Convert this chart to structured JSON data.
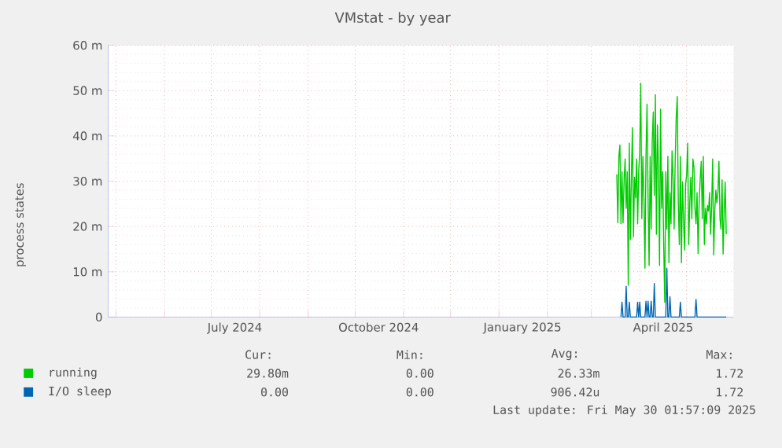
{
  "chart_data": {
    "type": "line",
    "title": "VMstat - by year",
    "ylabel": "process states",
    "xlim": [
      "2024-04-26",
      "2025-05-31"
    ],
    "xticks": [
      {
        "value": "2024-05-01",
        "label": null
      },
      {
        "value": "2024-06-01",
        "label": null
      },
      {
        "value": "2024-07-01",
        "label": null
      },
      {
        "value": "2024-08-01",
        "label": null
      },
      {
        "value": "2024-09-01",
        "label": null
      },
      {
        "value": "2024-10-01",
        "label": null
      },
      {
        "value": "2024-11-01",
        "label": null
      },
      {
        "value": "2024-12-01",
        "label": null
      },
      {
        "value": "2025-01-01",
        "label": null
      },
      {
        "value": "2025-02-01",
        "label": null
      },
      {
        "value": "2025-03-01",
        "label": null
      },
      {
        "value": "2025-04-01",
        "label": null
      },
      {
        "value": "2025-05-01",
        "label": null
      },
      {
        "value": "2024-07-16",
        "label": "July 2024"
      },
      {
        "value": "2024-10-16",
        "label": "October 2024"
      },
      {
        "value": "2025-01-16",
        "label": "January 2025"
      },
      {
        "value": "2025-04-16",
        "label": "April 2025"
      }
    ],
    "ylim": [
      0,
      60
    ],
    "yticks": [
      0,
      {
        "value": 10,
        "label": "10 m"
      },
      {
        "value": 20,
        "label": "20 m"
      },
      {
        "value": 30,
        "label": "30 m"
      },
      {
        "value": 40,
        "label": "40 m"
      },
      {
        "value": 50,
        "label": "50 m"
      },
      {
        "value": 60,
        "label": "60 m"
      }
    ],
    "grid": true,
    "legend": "bottom",
    "marker": "none",
    "x": [
      "2025-03-17T08:00",
      "2025-03-18T00:00",
      "2025-03-18T16:00",
      "2025-03-19T08:00",
      "2025-03-20T00:00",
      "2025-03-20T16:00",
      "2025-03-21T08:00",
      "2025-03-22T00:00",
      "2025-03-22T16:00",
      "2025-03-23T08:00",
      "2025-03-24T00:00",
      "2025-03-24T16:00",
      "2025-03-25T08:00",
      "2025-03-26T00:00",
      "2025-03-26T16:00",
      "2025-03-27T08:00",
      "2025-03-28T00:00",
      "2025-03-28T16:00",
      "2025-03-29T08:00",
      "2025-03-30T00:00",
      "2025-03-30T16:00",
      "2025-03-31T08:00",
      "2025-04-01T00:00",
      "2025-04-01T16:00",
      "2025-04-02T08:00",
      "2025-04-03T00:00",
      "2025-04-03T16:00",
      "2025-04-04T08:00",
      "2025-04-05T00:00",
      "2025-04-05T16:00",
      "2025-04-06T08:00",
      "2025-04-07T00:00",
      "2025-04-07T16:00",
      "2025-04-08T08:00",
      "2025-04-09T00:00",
      "2025-04-09T16:00",
      "2025-04-10T08:00",
      "2025-04-11T00:00",
      "2025-04-11T16:00",
      "2025-04-12T08:00",
      "2025-04-13T00:00",
      "2025-04-13T16:00",
      "2025-04-14T08:00",
      "2025-04-15T00:00",
      "2025-04-15T16:00",
      "2025-04-16T08:00",
      "2025-04-17T00:00",
      "2025-04-17T16:00",
      "2025-04-18T08:00",
      "2025-04-19T00:00",
      "2025-04-19T16:00",
      "2025-04-20T08:00",
      "2025-04-21T00:00",
      "2025-04-21T16:00",
      "2025-04-22T08:00",
      "2025-04-23T00:00",
      "2025-04-23T16:00",
      "2025-04-24T08:00",
      "2025-04-25T00:00",
      "2025-04-25T16:00",
      "2025-04-26T08:00",
      "2025-04-27T00:00",
      "2025-04-27T16:00",
      "2025-04-28T08:00",
      "2025-04-29T00:00",
      "2025-04-29T16:00",
      "2025-04-30T08:00",
      "2025-05-01T00:00",
      "2025-05-01T16:00",
      "2025-05-02T08:00",
      "2025-05-03T00:00",
      "2025-05-03T16:00",
      "2025-05-04T08:00",
      "2025-05-05T00:00",
      "2025-05-05T16:00",
      "2025-05-06T08:00",
      "2025-05-07T00:00",
      "2025-05-07T16:00",
      "2025-05-08T08:00",
      "2025-05-09T00:00",
      "2025-05-09T16:00",
      "2025-05-10T08:00",
      "2025-05-11T00:00",
      "2025-05-11T16:00",
      "2025-05-12T08:00",
      "2025-05-13T00:00",
      "2025-05-13T16:00",
      "2025-05-14T08:00",
      "2025-05-15T00:00",
      "2025-05-15T16:00",
      "2025-05-16T08:00",
      "2025-05-17T00:00",
      "2025-05-17T16:00",
      "2025-05-18T08:00",
      "2025-05-19T00:00",
      "2025-05-19T16:00",
      "2025-05-20T08:00",
      "2025-05-21T00:00",
      "2025-05-21T16:00",
      "2025-05-22T08:00",
      "2025-05-23T00:00",
      "2025-05-23T16:00",
      "2025-05-24T08:00",
      "2025-05-25T00:00",
      "2025-05-25T16:00",
      "2025-05-26T08:00"
    ],
    "series": [
      {
        "name": "running",
        "color": "#00cc00",
        "values": [
          31.5,
          20.8,
          35.5,
          38.0,
          20.6,
          32.1,
          20.8,
          30.3,
          34.9,
          24.0,
          32.1,
          7.0,
          38.4,
          17.1,
          30.9,
          41.8,
          17.7,
          30.9,
          26.3,
          34.9,
          20.6,
          32.1,
          36.7,
          51.6,
          21.7,
          35.5,
          26.3,
          10.8,
          35.5,
          47.0,
          26.3,
          11.4,
          35.5,
          19.4,
          39.0,
          45.3,
          26.9,
          49.1,
          18.3,
          42.4,
          33.2,
          11.4,
          45.9,
          24.0,
          32.1,
          16.0,
          3.3,
          32.1,
          19.4,
          35.5,
          12.0,
          27.5,
          20.6,
          36.7,
          30.9,
          19.4,
          34.4,
          44.1,
          48.7,
          25.2,
          16.0,
          35.5,
          12.0,
          29.8,
          21.7,
          14.8,
          29.2,
          31.5,
          38.4,
          16.0,
          25.2,
          30.9,
          21.7,
          34.9,
          33.2,
          24.0,
          20.6,
          27.5,
          14.0,
          25.2,
          30.3,
          34.4,
          21.7,
          35.5,
          16.0,
          24.0,
          20.6,
          24.6,
          23.4,
          27.5,
          18.3,
          24.6,
          34.9,
          13.7,
          23.4,
          28.0,
          25.2,
          27.5,
          34.4,
          21.7,
          19.4,
          30.3,
          13.9,
          22.9,
          29.8,
          18.3
        ]
      },
      {
        "name": "I/O sleep",
        "color": "#0066b3",
        "values": [
          null,
          null,
          null,
          null,
          0,
          3.3,
          0,
          0,
          0,
          6.8,
          0,
          0,
          3.3,
          0,
          0,
          0,
          0,
          0,
          0,
          0,
          3.3,
          0,
          3.3,
          0,
          0,
          0,
          0,
          0,
          3.5,
          0,
          3.5,
          0,
          0,
          3.5,
          0,
          0,
          7.4,
          0,
          0,
          0,
          0,
          0,
          0,
          0,
          0,
          0,
          0,
          0,
          10.8,
          0,
          0,
          4.5,
          0,
          0,
          0,
          0,
          0,
          0,
          0,
          0,
          0,
          3.3,
          0,
          0,
          0,
          0,
          0,
          0,
          0,
          0,
          0,
          0,
          0,
          0,
          0,
          0,
          3.9,
          0,
          0,
          0,
          0,
          0,
          0,
          0,
          0,
          0,
          0,
          0,
          0,
          0,
          0,
          0,
          0,
          0,
          0,
          0,
          0,
          0,
          0,
          0,
          0,
          0,
          0,
          0,
          0,
          0
        ]
      }
    ],
    "annotations": [
      "Cur:",
      "Min:",
      "Avg:",
      "Max:",
      "29.80m",
      "0.00",
      "26.33m",
      "1.72",
      "0.00",
      "0.00",
      "906.42u",
      "1.72",
      "Last update: Fri May 30 01:57:09 2025"
    ]
  }
}
